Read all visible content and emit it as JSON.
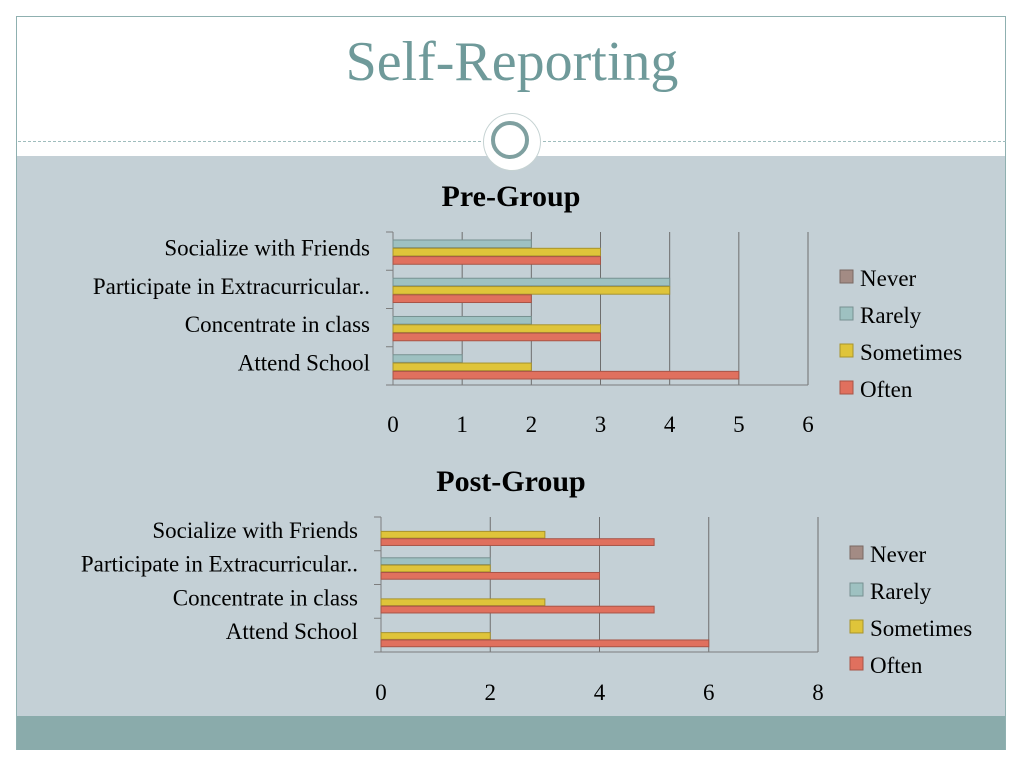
{
  "slide": {
    "title": "Self-Reporting"
  },
  "colors": {
    "title": "#6f9a9a",
    "content_bg": "#c4d0d6",
    "footer": "#8aabab"
  },
  "chart_data": [
    {
      "type": "bar",
      "orientation": "horizontal",
      "title": "Pre-Group",
      "categories": [
        "Socialize with Friends",
        "Participate in Extracurricular..",
        "Concentrate in class",
        "Attend School"
      ],
      "series": [
        {
          "name": "Never",
          "color": "#a38b84",
          "values": [
            0,
            0,
            0,
            0
          ]
        },
        {
          "name": "Rarely",
          "color": "#9ec1c1",
          "values": [
            2,
            4,
            2,
            1
          ]
        },
        {
          "name": "Sometimes",
          "color": "#dfc43a",
          "values": [
            3,
            4,
            3,
            2
          ]
        },
        {
          "name": "Often",
          "color": "#e0705e",
          "values": [
            3,
            2,
            3,
            5
          ]
        }
      ],
      "xlim": [
        0,
        6
      ],
      "xticks": [
        "0",
        "1",
        "2",
        "3",
        "4",
        "5",
        "6"
      ],
      "grid": true,
      "legend": "right"
    },
    {
      "type": "bar",
      "orientation": "horizontal",
      "title": "Post-Group",
      "categories": [
        "Socialize with Friends",
        "Participate in Extracurricular..",
        "Concentrate in class",
        "Attend School"
      ],
      "series": [
        {
          "name": "Never",
          "color": "#a38b84",
          "values": [
            0,
            0,
            0,
            0
          ]
        },
        {
          "name": "Rarely",
          "color": "#9ec1c1",
          "values": [
            0,
            2,
            0,
            0
          ]
        },
        {
          "name": "Sometimes",
          "color": "#dfc43a",
          "values": [
            3,
            2,
            3,
            2
          ]
        },
        {
          "name": "Often",
          "color": "#e0705e",
          "values": [
            5,
            4,
            5,
            6
          ]
        }
      ],
      "xlim": [
        0,
        8
      ],
      "xticks": [
        "0",
        "2",
        "4",
        "6",
        "8"
      ],
      "grid": true,
      "legend": "right"
    }
  ]
}
